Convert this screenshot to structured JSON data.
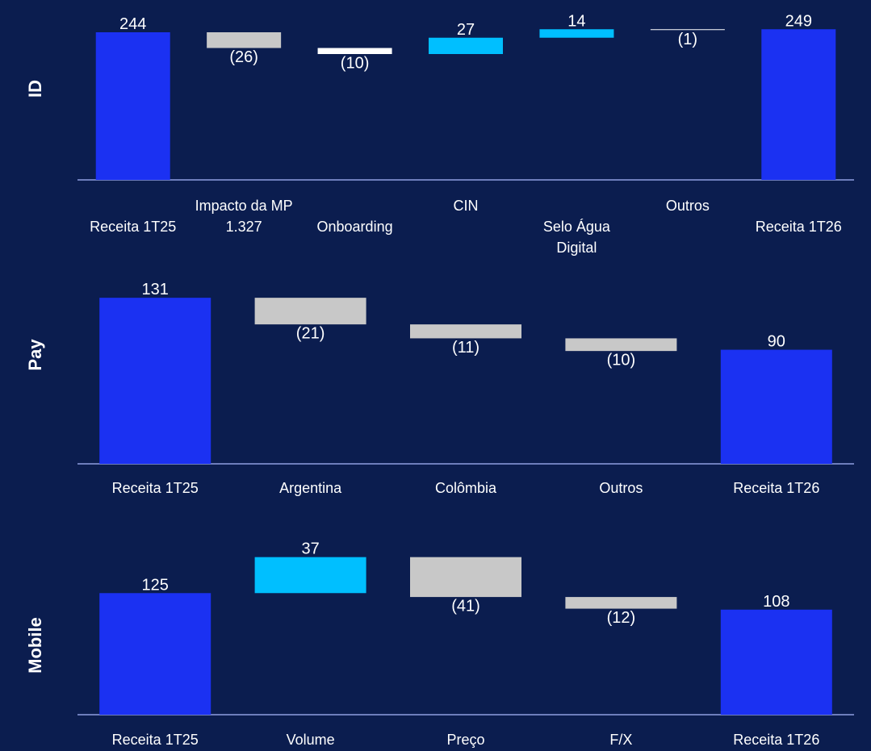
{
  "chart_data": [
    {
      "type": "waterfall",
      "title": "ID",
      "categories": [
        "Receita 1T25",
        "Impacto da MP 1.327",
        "Onboarding",
        "CIN",
        "Selo Água Digital",
        "Outros",
        "Receita 1T26"
      ],
      "values": [
        244,
        -26,
        -10,
        27,
        14,
        -1,
        249
      ],
      "value_labels": [
        "244",
        "(26)",
        "(10)",
        "27",
        "14",
        "(1)",
        "249"
      ],
      "colors": [
        "#1b31f2",
        "#c8c8c8",
        "#ffffff",
        "#00bfff",
        "#00bfff",
        "#ffffff",
        "#1b31f2"
      ],
      "ylim": [
        0,
        260
      ]
    },
    {
      "type": "waterfall",
      "title": "Pay",
      "categories": [
        "Receita 1T25",
        "Argentina",
        "Colômbia",
        "Outros",
        "Receita 1T26"
      ],
      "values": [
        131,
        -21,
        -11,
        -10,
        90
      ],
      "value_labels": [
        "131",
        "(21)",
        "(11)",
        "(10)",
        "90"
      ],
      "colors": [
        "#1b31f2",
        "#c8c8c8",
        "#c8c8c8",
        "#c8c8c8",
        "#1b31f2"
      ],
      "ylim": [
        0,
        140
      ]
    },
    {
      "type": "waterfall",
      "title": "Mobile",
      "categories": [
        "Receita 1T25",
        "Volume",
        "Preço",
        "F/X",
        "Receita 1T26"
      ],
      "values": [
        125,
        37,
        -41,
        -12,
        108
      ],
      "value_labels": [
        "125",
        "37",
        "(41)",
        "(12)",
        "108"
      ],
      "colors": [
        "#1b31f2",
        "#00bfff",
        "#c8c8c8",
        "#c8c8c8",
        "#1b31f2"
      ],
      "ylim": [
        0,
        170
      ]
    }
  ]
}
